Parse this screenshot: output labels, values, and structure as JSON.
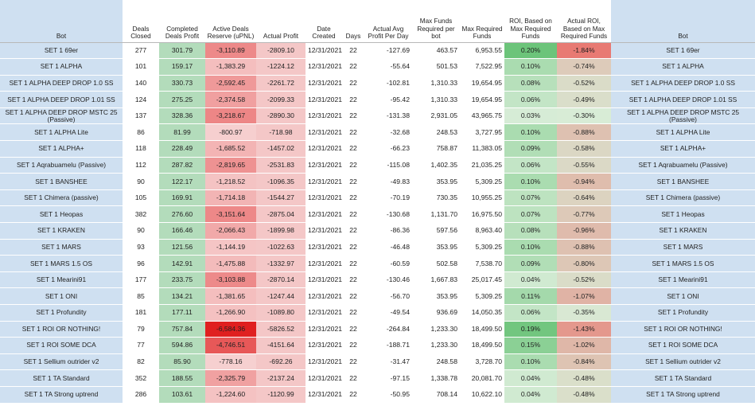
{
  "headers": {
    "bot": "Bot",
    "deals_closed": "Deals Closed",
    "completed_profit": "Completed Deals Profit",
    "active_reserve": "Active Deals Reserve (uPNL)",
    "actual_profit": "Actual Profit",
    "date_created": "Date Created",
    "days": "Days",
    "avg_profit": "Actual Avg Profit Per Day",
    "max_funds_bot": "Max Funds Required per bot",
    "max_required": "Max Required Funds",
    "roi_max": "ROI, Based on Max Required Funds",
    "actual_roi": "Actual ROI, Based on Max Required Funds",
    "bot_right": "Bot"
  },
  "colors": {
    "bot_column": "#cfe0f1",
    "completed_profit": "#b3dcbb",
    "actual_profit": "#f4c7c7",
    "reserve_scale": [
      "#f6d0d0",
      "#e02020"
    ],
    "roi_scale": [
      "#d6ecd6",
      "#6cc47a"
    ],
    "actual_roi_scale": [
      "#d8ecd6",
      "#e87a73"
    ]
  },
  "rows": [
    {
      "bot": "SET 1 69er",
      "deals": "277",
      "profit": "301.79",
      "reserve": "-3,110.89",
      "actual": "-2809.10",
      "date": "12/31/2021",
      "days": "22",
      "avg": "-127.69",
      "maxbot": "463.57",
      "maxreq": "6,953.55",
      "roi": "0.20%",
      "aroi": "-1.84%"
    },
    {
      "bot": "SET 1 ALPHA",
      "deals": "101",
      "profit": "159.17",
      "reserve": "-1,383.29",
      "actual": "-1224.12",
      "date": "12/31/2021",
      "days": "22",
      "avg": "-55.64",
      "maxbot": "501.53",
      "maxreq": "7,522.95",
      "roi": "0.10%",
      "aroi": "-0.74%"
    },
    {
      "bot": "SET 1 ALPHA DEEP DROP 1.0 SS",
      "deals": "140",
      "profit": "330.73",
      "reserve": "-2,592.45",
      "actual": "-2261.72",
      "date": "12/31/2021",
      "days": "22",
      "avg": "-102.81",
      "maxbot": "1,310.33",
      "maxreq": "19,654.95",
      "roi": "0.08%",
      "aroi": "-0.52%"
    },
    {
      "bot": "SET 1 ALPHA DEEP DROP 1.01 SS",
      "deals": "124",
      "profit": "275.25",
      "reserve": "-2,374.58",
      "actual": "-2099.33",
      "date": "12/31/2021",
      "days": "22",
      "avg": "-95.42",
      "maxbot": "1,310.33",
      "maxreq": "19,654.95",
      "roi": "0.06%",
      "aroi": "-0.49%"
    },
    {
      "bot": "SET 1 ALPHA DEEP DROP MSTC 25 (Passive)",
      "deals": "137",
      "profit": "328.36",
      "reserve": "-3,218.67",
      "actual": "-2890.30",
      "date": "12/31/2021",
      "days": "22",
      "avg": "-131.38",
      "maxbot": "2,931.05",
      "maxreq": "43,965.75",
      "roi": "0.03%",
      "aroi": "-0.30%"
    },
    {
      "bot": "SET 1 ALPHA Lite",
      "deals": "86",
      "profit": "81.99",
      "reserve": "-800.97",
      "actual": "-718.98",
      "date": "12/31/2021",
      "days": "22",
      "avg": "-32.68",
      "maxbot": "248.53",
      "maxreq": "3,727.95",
      "roi": "0.10%",
      "aroi": "-0.88%"
    },
    {
      "bot": "SET 1 ALPHA+",
      "deals": "118",
      "profit": "228.49",
      "reserve": "-1,685.52",
      "actual": "-1457.02",
      "date": "12/31/2021",
      "days": "22",
      "avg": "-66.23",
      "maxbot": "758.87",
      "maxreq": "11,383.05",
      "roi": "0.09%",
      "aroi": "-0.58%"
    },
    {
      "bot": "SET 1 Aqrabuamelu (Passive)",
      "deals": "112",
      "profit": "287.82",
      "reserve": "-2,819.65",
      "actual": "-2531.83",
      "date": "12/31/2021",
      "days": "22",
      "avg": "-115.08",
      "maxbot": "1,402.35",
      "maxreq": "21,035.25",
      "roi": "0.06%",
      "aroi": "-0.55%"
    },
    {
      "bot": "SET 1 BANSHEE",
      "deals": "90",
      "profit": "122.17",
      "reserve": "-1,218.52",
      "actual": "-1096.35",
      "date": "12/31/2021",
      "days": "22",
      "avg": "-49.83",
      "maxbot": "353.95",
      "maxreq": "5,309.25",
      "roi": "0.10%",
      "aroi": "-0.94%"
    },
    {
      "bot": "SET 1 Chimera (passive)",
      "deals": "105",
      "profit": "169.91",
      "reserve": "-1,714.18",
      "actual": "-1544.27",
      "date": "12/31/2021",
      "days": "22",
      "avg": "-70.19",
      "maxbot": "730.35",
      "maxreq": "10,955.25",
      "roi": "0.07%",
      "aroi": "-0.64%"
    },
    {
      "bot": "SET 1 Heopas",
      "deals": "382",
      "profit": "276.60",
      "reserve": "-3,151.64",
      "actual": "-2875.04",
      "date": "12/31/2021",
      "days": "22",
      "avg": "-130.68",
      "maxbot": "1,131.70",
      "maxreq": "16,975.50",
      "roi": "0.07%",
      "aroi": "-0.77%"
    },
    {
      "bot": "SET 1 KRAKEN",
      "deals": "90",
      "profit": "166.46",
      "reserve": "-2,066.43",
      "actual": "-1899.98",
      "date": "12/31/2021",
      "days": "22",
      "avg": "-86.36",
      "maxbot": "597.56",
      "maxreq": "8,963.40",
      "roi": "0.08%",
      "aroi": "-0.96%"
    },
    {
      "bot": "SET 1 MARS",
      "deals": "93",
      "profit": "121.56",
      "reserve": "-1,144.19",
      "actual": "-1022.63",
      "date": "12/31/2021",
      "days": "22",
      "avg": "-46.48",
      "maxbot": "353.95",
      "maxreq": "5,309.25",
      "roi": "0.10%",
      "aroi": "-0.88%"
    },
    {
      "bot": "SET 1 MARS 1.5 OS",
      "deals": "96",
      "profit": "142.91",
      "reserve": "-1,475.88",
      "actual": "-1332.97",
      "date": "12/31/2021",
      "days": "22",
      "avg": "-60.59",
      "maxbot": "502.58",
      "maxreq": "7,538.70",
      "roi": "0.09%",
      "aroi": "-0.80%"
    },
    {
      "bot": "SET 1 Mearini91",
      "deals": "177",
      "profit": "233.75",
      "reserve": "-3,103.88",
      "actual": "-2870.14",
      "date": "12/31/2021",
      "days": "22",
      "avg": "-130.46",
      "maxbot": "1,667.83",
      "maxreq": "25,017.45",
      "roi": "0.04%",
      "aroi": "-0.52%"
    },
    {
      "bot": "SET 1 ONI",
      "deals": "85",
      "profit": "134.21",
      "reserve": "-1,381.65",
      "actual": "-1247.44",
      "date": "12/31/2021",
      "days": "22",
      "avg": "-56.70",
      "maxbot": "353.95",
      "maxreq": "5,309.25",
      "roi": "0.11%",
      "aroi": "-1.07%"
    },
    {
      "bot": "SET 1 Profundity",
      "deals": "181",
      "profit": "177.11",
      "reserve": "-1,266.90",
      "actual": "-1089.80",
      "date": "12/31/2021",
      "days": "22",
      "avg": "-49.54",
      "maxbot": "936.69",
      "maxreq": "14,050.35",
      "roi": "0.06%",
      "aroi": "-0.35%"
    },
    {
      "bot": "SET 1 ROI OR NOTHING!",
      "deals": "79",
      "profit": "757.84",
      "reserve": "-6,584.36",
      "actual": "-5826.52",
      "date": "12/31/2021",
      "days": "22",
      "avg": "-264.84",
      "maxbot": "1,233.30",
      "maxreq": "18,499.50",
      "roi": "0.19%",
      "aroi": "-1.43%"
    },
    {
      "bot": "SET 1 ROI SOME DCA",
      "deals": "77",
      "profit": "594.86",
      "reserve": "-4,746.51",
      "actual": "-4151.64",
      "date": "12/31/2021",
      "days": "22",
      "avg": "-188.71",
      "maxbot": "1,233.30",
      "maxreq": "18,499.50",
      "roi": "0.15%",
      "aroi": "-1.02%"
    },
    {
      "bot": "SET 1 Sellium outrider v2",
      "deals": "82",
      "profit": "85.90",
      "reserve": "-778.16",
      "actual": "-692.26",
      "date": "12/31/2021",
      "days": "22",
      "avg": "-31.47",
      "maxbot": "248.58",
      "maxreq": "3,728.70",
      "roi": "0.10%",
      "aroi": "-0.84%"
    },
    {
      "bot": "SET 1 TA Standard",
      "deals": "352",
      "profit": "188.55",
      "reserve": "-2,325.79",
      "actual": "-2137.24",
      "date": "12/31/2021",
      "days": "22",
      "avg": "-97.15",
      "maxbot": "1,338.78",
      "maxreq": "20,081.70",
      "roi": "0.04%",
      "aroi": "-0.48%"
    },
    {
      "bot": "SET 1 TA Strong uptrend",
      "deals": "286",
      "profit": "103.61",
      "reserve": "-1,224.60",
      "actual": "-1120.99",
      "date": "12/31/2021",
      "days": "22",
      "avg": "-50.95",
      "maxbot": "708.14",
      "maxreq": "10,622.10",
      "roi": "0.04%",
      "aroi": "-0.48%"
    }
  ]
}
